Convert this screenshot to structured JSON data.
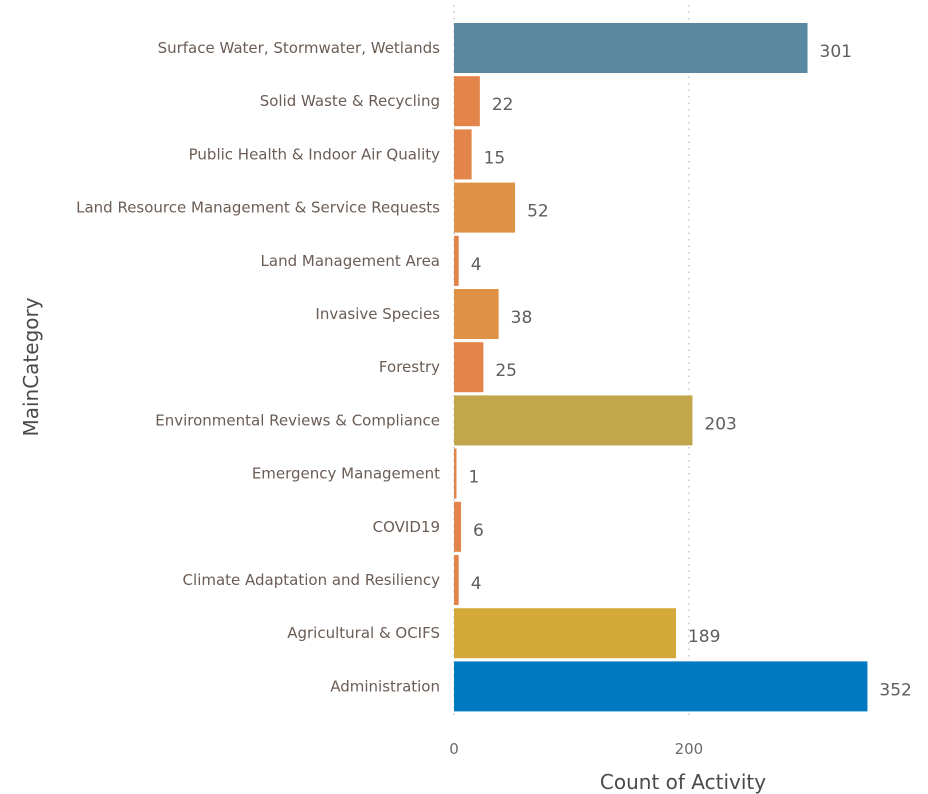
{
  "chart_data": {
    "type": "bar",
    "orientation": "horizontal",
    "title": "",
    "xlabel": "Count of Activity",
    "ylabel": "MainCategory",
    "xlim": [
      0,
      360
    ],
    "x_ticks": [
      "0",
      "200"
    ],
    "grid": "vertical dotted",
    "legend": "none",
    "categories": [
      "Surface Water, Stormwater, Wetlands",
      "Solid Waste & Recycling",
      "Public Health & Indoor Air Quality",
      "Land Resource Management & Service Requests",
      "Land Management Area",
      "Invasive Species",
      "Forestry",
      "Environmental Reviews & Compliance",
      "Emergency Management",
      "COVID19",
      "Climate Adaptation and Resiliency",
      "Agricultural & OCIFS",
      "Administration"
    ],
    "values": [
      301,
      22,
      15,
      52,
      4,
      38,
      25,
      203,
      1,
      6,
      4,
      189,
      352
    ],
    "colors": [
      "#5a889f",
      "#e3844a",
      "#e3844a",
      "#df9245",
      "#e3844a",
      "#df9245",
      "#e3844a",
      "#c2a64c",
      "#e3844a",
      "#e3844a",
      "#e3844a",
      "#d3aa3a",
      "#0079c1"
    ]
  }
}
